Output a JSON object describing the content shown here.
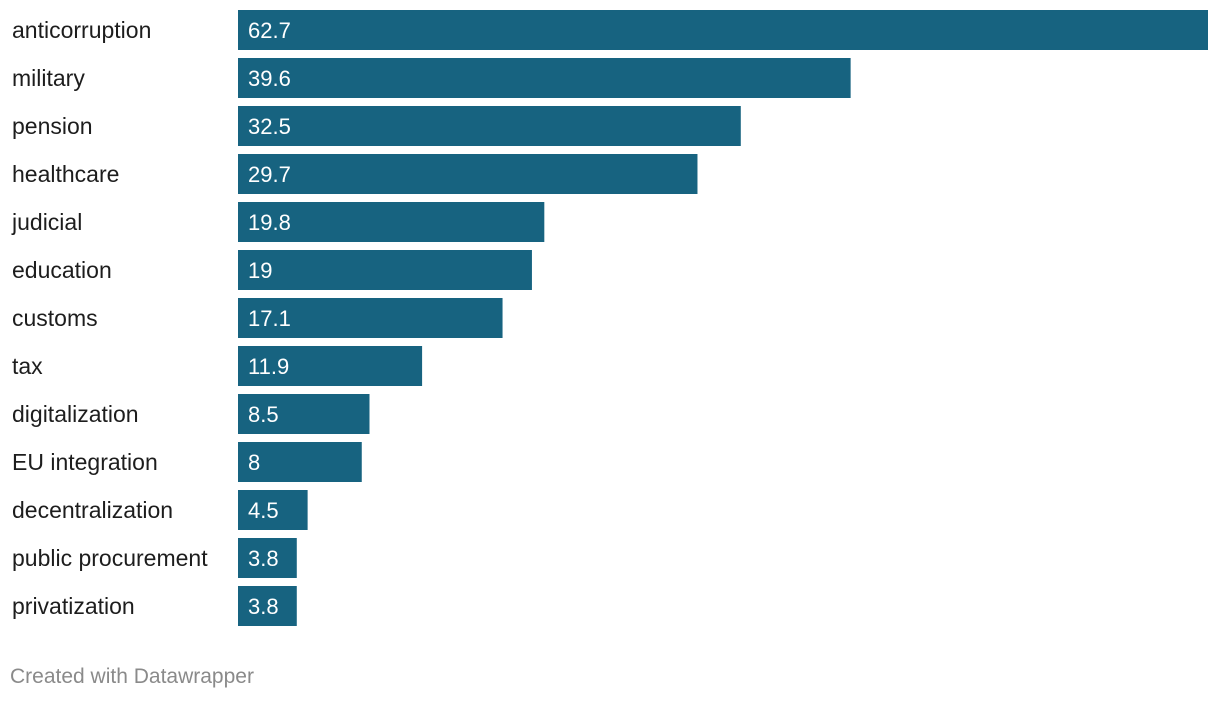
{
  "chart_data": {
    "type": "bar",
    "orientation": "horizontal",
    "categories": [
      "anticorruption",
      "military",
      "pension",
      "healthcare",
      "judicial",
      "education",
      "customs",
      "tax",
      "digitalization",
      "EU integration",
      "decentralization",
      "public procurement",
      "privatization"
    ],
    "values": [
      62.7,
      39.6,
      32.5,
      29.7,
      19.8,
      19,
      17.1,
      11.9,
      8.5,
      8,
      4.5,
      3.8,
      3.8
    ],
    "value_labels": [
      "62.7",
      "39.6",
      "32.5",
      "29.7",
      "19.8",
      "19",
      "17.1",
      "11.9",
      "8.5",
      "8",
      "4.5",
      "3.8",
      "3.8"
    ],
    "xlim": [
      0,
      62.7
    ],
    "bar_color": "#176380",
    "grid": false,
    "title": "",
    "xlabel": "",
    "ylabel": ""
  },
  "footer": {
    "credit": "Created with Datawrapper"
  }
}
